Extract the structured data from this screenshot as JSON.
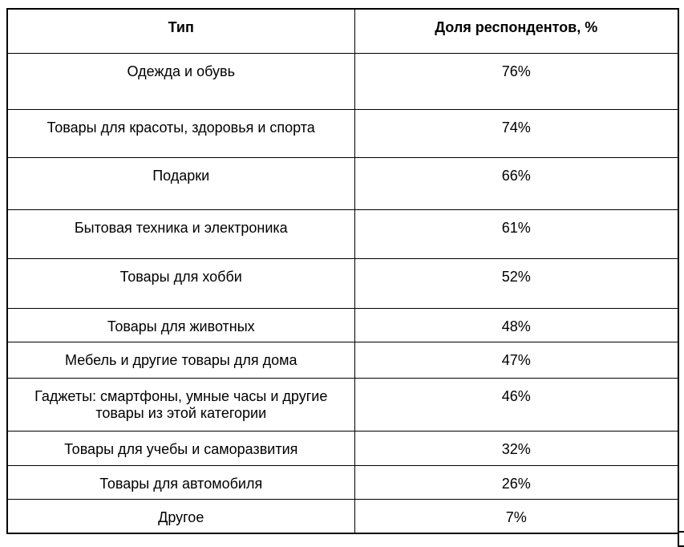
{
  "colors": {
    "background": "#ffffff",
    "border": "#000000",
    "text": "#000000"
  },
  "table": {
    "columns": [
      "Тип",
      "Доля респондентов, %"
    ],
    "rows": [
      {
        "type": "Одежда и обувь",
        "share": "76%"
      },
      {
        "type": "Товары для красоты, здоровья и спорта",
        "share": "74%"
      },
      {
        "type": "Подарки",
        "share": "66%"
      },
      {
        "type": "Бытовая техника и электроника",
        "share": "61%"
      },
      {
        "type": "Товары для хобби",
        "share": "52%"
      },
      {
        "type": "Товары для животных",
        "share": "48%"
      },
      {
        "type": "Мебель и другие товары для дома",
        "share": "47%"
      },
      {
        "type": "Гаджеты: смартфоны, умные часы и другие товары из этой категории",
        "share": "46%"
      },
      {
        "type": "Товары для учебы и саморазвития",
        "share": "32%"
      },
      {
        "type": "Товары для автомобиля",
        "share": "26%"
      },
      {
        "type": "Другое",
        "share": "7%"
      }
    ]
  },
  "chart_data": {
    "type": "table",
    "title": "",
    "columns": [
      "Тип",
      "Доля респондентов, %"
    ],
    "categories": [
      "Одежда и обувь",
      "Товары для красоты, здоровья и спорта",
      "Подарки",
      "Бытовая техника и электроника",
      "Товары для хобби",
      "Товары для животных",
      "Мебель и другие товары для дома",
      "Гаджеты: смартфоны, умные часы и другие товары из этой категории",
      "Товары для учебы и саморазвития",
      "Товары для автомобиля",
      "Другое"
    ],
    "values": [
      76,
      74,
      66,
      61,
      52,
      48,
      47,
      46,
      32,
      26,
      7
    ]
  }
}
